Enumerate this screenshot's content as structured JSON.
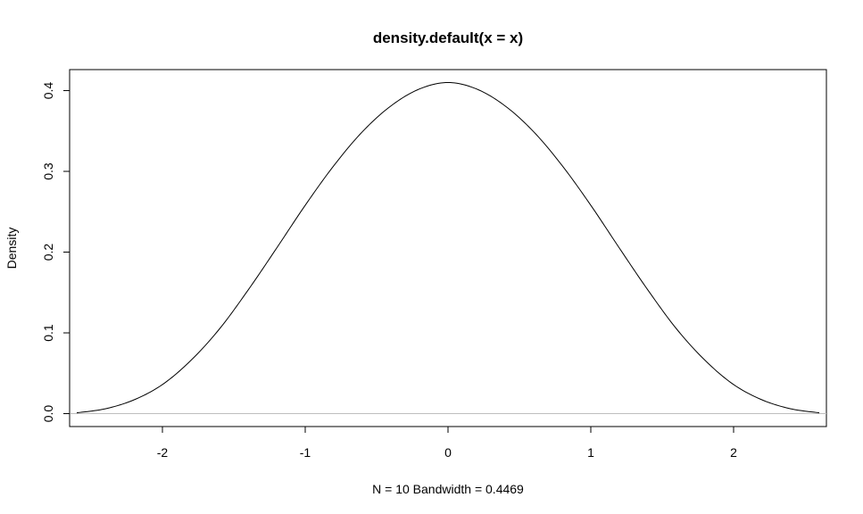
{
  "chart_data": {
    "type": "line",
    "title": "density.default(x = x)",
    "xlabel": "N = 10   Bandwidth = 0.4469",
    "ylabel": "Density",
    "xlim": [
      -2.65,
      2.65
    ],
    "ylim": [
      -0.016,
      0.426
    ],
    "x_ticks": [
      -2,
      -1,
      0,
      1,
      2
    ],
    "x_tick_labels": [
      "-2",
      "-1",
      "0",
      "1",
      "2"
    ],
    "y_ticks": [
      0.0,
      0.1,
      0.2,
      0.3,
      0.4
    ],
    "y_tick_labels": [
      "0.0",
      "0.1",
      "0.2",
      "0.3",
      "0.4"
    ],
    "baseline": 0,
    "grid": false,
    "series": [
      {
        "x": [
          -2.6,
          -2.4,
          -2.2,
          -2.0,
          -1.8,
          -1.6,
          -1.4,
          -1.2,
          -1.0,
          -0.8,
          -0.6,
          -0.4,
          -0.2,
          0.0,
          0.2,
          0.4,
          0.6,
          0.8,
          1.0,
          1.2,
          1.4,
          1.6,
          1.8,
          2.0,
          2.2,
          2.4,
          2.6
        ],
        "y": [
          0.001,
          0.006,
          0.017,
          0.036,
          0.066,
          0.105,
          0.153,
          0.205,
          0.258,
          0.307,
          0.349,
          0.381,
          0.402,
          0.41,
          0.402,
          0.381,
          0.349,
          0.307,
          0.258,
          0.205,
          0.153,
          0.105,
          0.066,
          0.036,
          0.017,
          0.006,
          0.001
        ]
      }
    ]
  },
  "colors": {
    "line": "#000000",
    "baseline": "#bebebe",
    "frame": "#000000"
  }
}
